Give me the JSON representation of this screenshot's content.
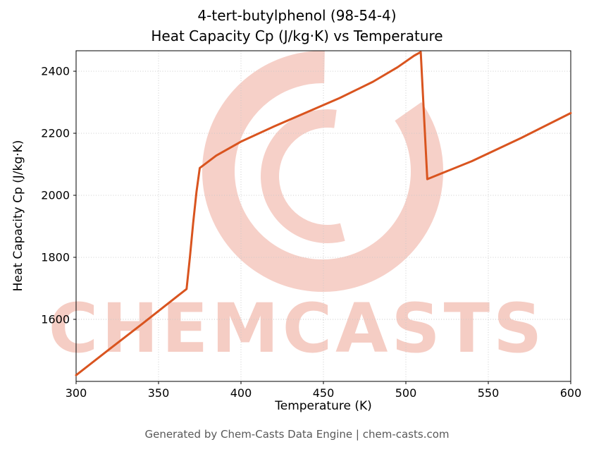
{
  "header": {
    "line1": "4-tert-butylphenol (98-54-4)",
    "line2": "Heat Capacity Cp (J/kg·K) vs Temperature"
  },
  "watermark": {
    "text": "CHEMCASTS",
    "color": "#e2654a"
  },
  "footer": {
    "text": "Generated by Chem-Casts Data Engine | chem-casts.com"
  },
  "chart_data": {
    "type": "line",
    "title": "4-tert-butylphenol (98-54-4) Heat Capacity Cp (J/kg·K) vs Temperature",
    "xlabel": "Temperature (K)",
    "ylabel": "Heat Capacity Cp (J/kg·K)",
    "xlim": [
      300,
      600
    ],
    "ylim": [
      1400,
      2466
    ],
    "xticks": [
      300,
      350,
      400,
      450,
      500,
      550,
      600
    ],
    "yticks": [
      1600,
      1800,
      2000,
      2200,
      2400
    ],
    "grid": true,
    "legend": "none",
    "line_color": "#d9541f",
    "series": [
      {
        "name": "Heat Capacity Cp",
        "points": [
          [
            300,
            1420
          ],
          [
            320,
            1503
          ],
          [
            340,
            1585
          ],
          [
            355,
            1648
          ],
          [
            367,
            1698
          ],
          [
            369,
            1800
          ],
          [
            371,
            1910
          ],
          [
            373,
            2010
          ],
          [
            375,
            2088
          ],
          [
            385,
            2128
          ],
          [
            400,
            2173
          ],
          [
            420,
            2222
          ],
          [
            440,
            2268
          ],
          [
            460,
            2314
          ],
          [
            480,
            2366
          ],
          [
            495,
            2413
          ],
          [
            505,
            2450
          ],
          [
            509,
            2462
          ],
          [
            513,
            2052
          ],
          [
            540,
            2110
          ],
          [
            570,
            2185
          ],
          [
            600,
            2265
          ]
        ]
      }
    ]
  }
}
